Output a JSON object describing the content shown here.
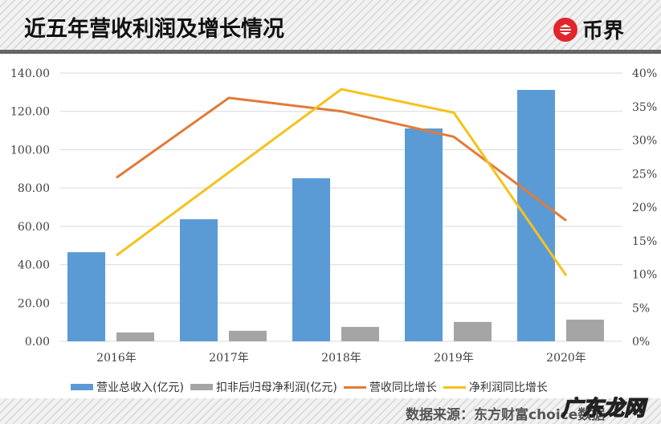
{
  "header": {
    "title": "近五年营收利润及增长情况",
    "logo_text": "币界",
    "logo_icon": "币界-circle-logo-icon",
    "logo_color": "#e0262a"
  },
  "footer": {
    "source": "数据来源：东方财富choice数据",
    "watermark": "广东龙网"
  },
  "chart_data": {
    "type": "bar",
    "title": "近五年营收利润及增长情况",
    "xlabel": "",
    "ylabel": "",
    "categories": [
      "2016年",
      "2017年",
      "2018年",
      "2019年",
      "2020年"
    ],
    "y_left": {
      "ylim": [
        0,
        140
      ],
      "ticks": [
        "0.00",
        "20.00",
        "40.00",
        "60.00",
        "80.00",
        "100.00",
        "120.00",
        "140.00"
      ]
    },
    "y_right": {
      "ylim": [
        0,
        40
      ],
      "ticks": [
        "0%",
        "5%",
        "10%",
        "15%",
        "20%",
        "25%",
        "30%",
        "35%",
        "40%"
      ]
    },
    "grid": true,
    "legend_position": "bottom",
    "series": [
      {
        "name": "营业总收入(亿元)",
        "type": "bar",
        "axis": "left",
        "color": "#5b9bd5",
        "values": [
          46.5,
          63.7,
          85.1,
          111.1,
          131.2
        ]
      },
      {
        "name": "扣非后归母净利润(亿元)",
        "type": "bar",
        "axis": "left",
        "color": "#a5a5a5",
        "values": [
          4.6,
          5.5,
          7.5,
          10.1,
          11.3
        ]
      },
      {
        "name": "营收同比增长",
        "type": "line",
        "axis": "right",
        "color": "#e07b39",
        "values": [
          24.4,
          36.3,
          34.3,
          30.5,
          18.0
        ]
      },
      {
        "name": "净利润同比增长",
        "type": "line",
        "axis": "right",
        "color": "#f5c21b",
        "values": [
          12.8,
          25.2,
          37.6,
          34.1,
          9.8
        ]
      }
    ]
  },
  "legend": {
    "items": [
      {
        "label": "营业总收入(亿元)",
        "color": "#5b9bd5",
        "kind": "bar"
      },
      {
        "label": "扣非后归母净利润(亿元)",
        "color": "#a5a5a5",
        "kind": "bar"
      },
      {
        "label": "营收同比增长",
        "color": "#e07b39",
        "kind": "line"
      },
      {
        "label": "净利润同比增长",
        "color": "#f5c21b",
        "kind": "line"
      }
    ]
  }
}
